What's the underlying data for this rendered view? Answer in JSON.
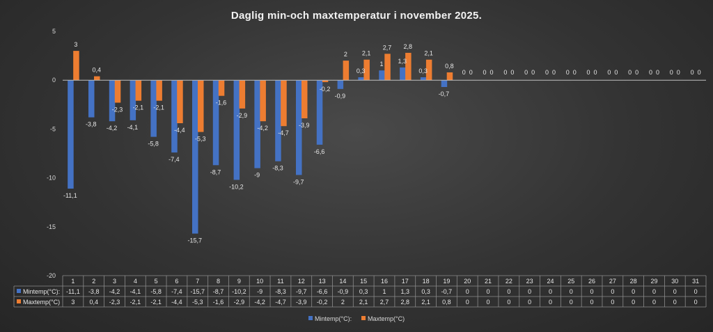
{
  "chart_data": {
    "type": "bar",
    "title": "Daglig min-och maxtemperatur i november 2025.",
    "categories": [
      "1",
      "2",
      "3",
      "4",
      "5",
      "6",
      "7",
      "8",
      "9",
      "10",
      "11",
      "12",
      "13",
      "14",
      "15",
      "16",
      "17",
      "18",
      "19",
      "20",
      "21",
      "22",
      "23",
      "24",
      "25",
      "26",
      "27",
      "28",
      "29",
      "30",
      "31"
    ],
    "series": [
      {
        "name": "Mintemp(°C):",
        "color": "#4472c4",
        "values": [
          -11.1,
          -3.8,
          -4.2,
          -4.1,
          -5.8,
          -7.4,
          -15.7,
          -8.7,
          -10.2,
          -9,
          -8.3,
          -9.7,
          -6.6,
          -0.9,
          0.3,
          1,
          1.3,
          0.3,
          -0.7,
          0,
          0,
          0,
          0,
          0,
          0,
          0,
          0,
          0,
          0,
          0,
          0
        ]
      },
      {
        "name": "Maxtemp(°C)",
        "color": "#ed7d31",
        "values": [
          3,
          0.4,
          -2.3,
          -2.1,
          -2.1,
          -4.4,
          -5.3,
          -1.6,
          -2.9,
          -4.2,
          -4.7,
          -3.9,
          -0.2,
          2,
          2.1,
          2.7,
          2.8,
          2.1,
          0.8,
          0,
          0,
          0,
          0,
          0,
          0,
          0,
          0,
          0,
          0,
          0,
          0
        ]
      }
    ],
    "ylim": [
      -20,
      5
    ],
    "yticks": [
      5,
      0,
      -5,
      -10,
      -15,
      -20
    ],
    "decimal_separator": ",",
    "legend_position": "bottom",
    "data_table": true,
    "grid": false
  }
}
